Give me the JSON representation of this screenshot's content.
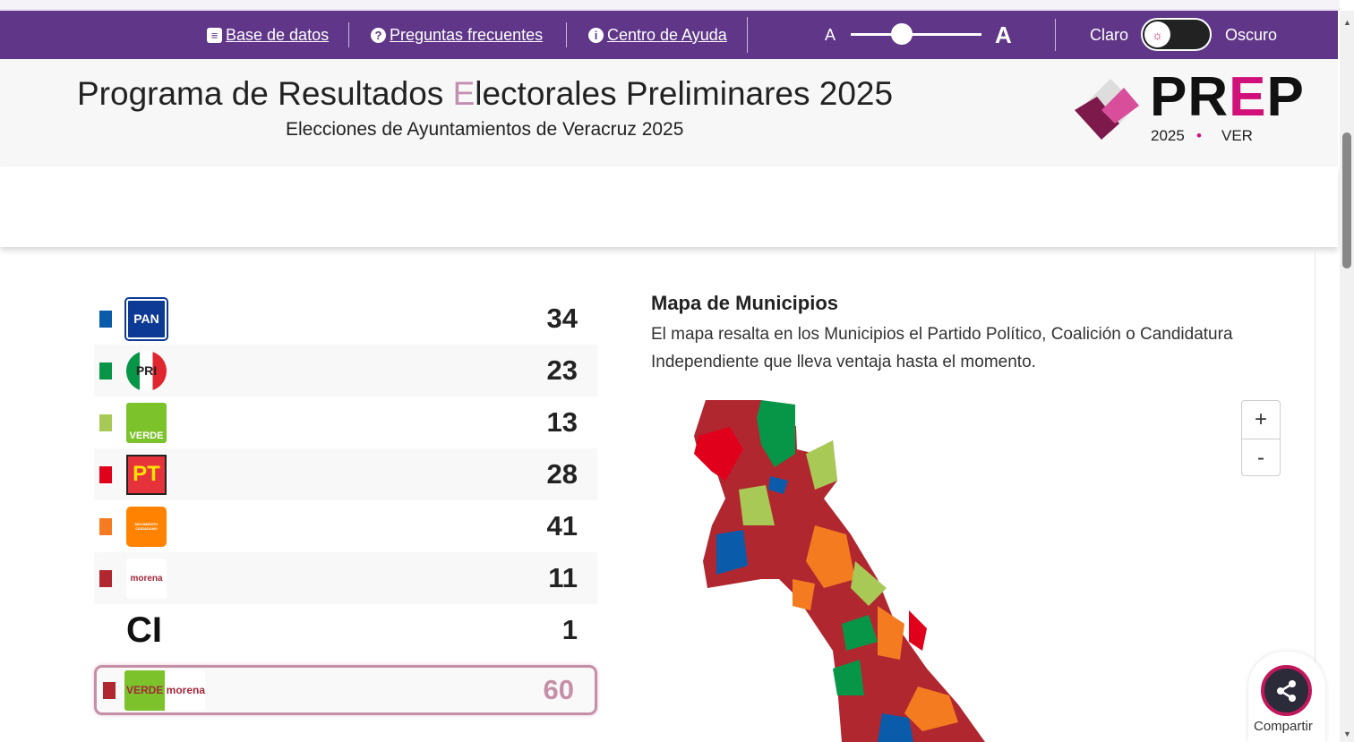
{
  "nav": {
    "links": [
      {
        "label": "Base de datos",
        "icon": "database-icon"
      },
      {
        "label": "Preguntas frecuentes",
        "icon": "question-icon"
      },
      {
        "label": "Centro de Ayuda",
        "icon": "info-icon"
      }
    ],
    "font_small": "A",
    "font_large": "A",
    "font_size_level": 0.4,
    "theme_light": "Claro",
    "theme_dark": "Oscuro"
  },
  "header": {
    "title_pre": "Programa de Resultados ",
    "title_e": "E",
    "title_post": "lectorales Preliminares 2025",
    "subtitle": "Elecciones de Ayuntamientos de Veracruz 2025",
    "logo": {
      "text": "PREP",
      "year": "2025",
      "state": "VER"
    }
  },
  "parties": [
    {
      "name": "PAN",
      "color": "#0b5bab",
      "count": "34"
    },
    {
      "name": "PRI",
      "color": "#079647",
      "count": "23"
    },
    {
      "name": "VERDE",
      "color": "#a8c956",
      "count": "13"
    },
    {
      "name": "PT",
      "color": "#e0001b",
      "count": "28"
    },
    {
      "name": "MOVIMIENTO CIUDADANO",
      "color": "#f47b20",
      "count": "41"
    },
    {
      "name": "morena",
      "color": "#b1272f",
      "count": "11"
    },
    {
      "name": "CI",
      "color": "",
      "count": "1"
    },
    {
      "name": "VERDE morena",
      "color": "#b1272f",
      "count": "60"
    }
  ],
  "map": {
    "title": "Mapa de Municipios",
    "description": "El mapa resalta en los Municipios el Partido Político, Coalición o Candidatura Independiente que lleva ventaja hasta el momento.",
    "zoom_in": "+",
    "zoom_out": "-"
  },
  "share": {
    "label": "Compartir"
  }
}
